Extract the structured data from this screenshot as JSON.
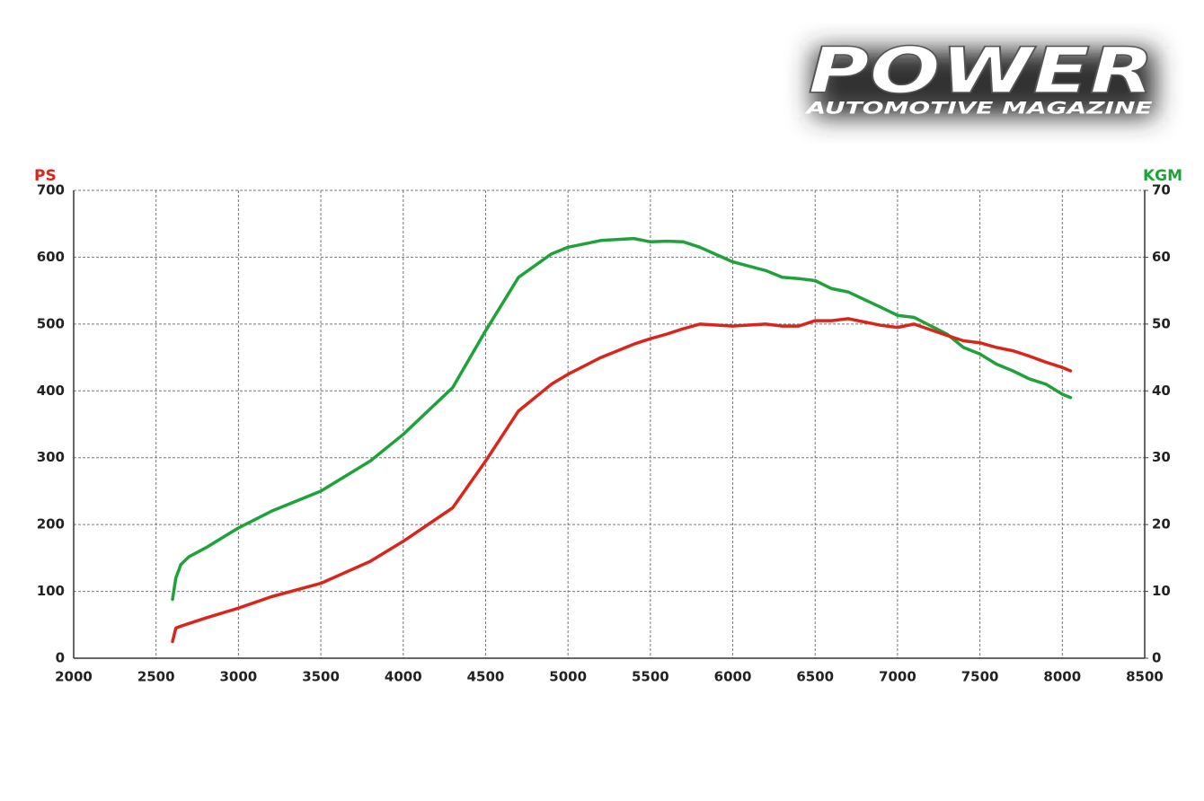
{
  "logo": {
    "title": "POWER",
    "subtitle": "AUTOMOTIVE MAGAZINE"
  },
  "chart_data": {
    "type": "line",
    "ylabel": "PS",
    "y2label": "KGM",
    "x": [
      2600,
      2620,
      2650,
      2700,
      2800,
      3000,
      3200,
      3500,
      3800,
      4000,
      4300,
      4500,
      4700,
      4900,
      5000,
      5200,
      5400,
      5500,
      5600,
      5700,
      5800,
      6000,
      6200,
      6300,
      6400,
      6500,
      6600,
      6700,
      6900,
      7000,
      7100,
      7300,
      7400,
      7500,
      7600,
      7700,
      7800,
      7900,
      8000,
      8050
    ],
    "series": [
      {
        "name": "PS",
        "color": "#d9261c",
        "values": [
          25,
          45,
          48,
          52,
          60,
          75,
          92,
          112,
          145,
          175,
          225,
          295,
          370,
          410,
          425,
          450,
          470,
          478,
          485,
          493,
          500,
          497,
          500,
          497,
          497,
          505,
          505,
          508,
          498,
          495,
          500,
          483,
          475,
          472,
          465,
          460,
          452,
          443,
          435,
          430
        ]
      },
      {
        "name": "KGM",
        "color": "#1fa23a",
        "axis": "y2",
        "values": [
          8.8,
          12,
          14,
          15.2,
          16.5,
          19.5,
          22,
          25,
          29.5,
          33.5,
          40.5,
          49,
          57,
          60.5,
          61.5,
          62.5,
          62.8,
          62.3,
          62.4,
          62.3,
          61.5,
          59.3,
          58,
          57,
          56.8,
          56.5,
          55.3,
          54.8,
          52.5,
          51.3,
          51,
          48.5,
          46.5,
          45.5,
          44,
          43,
          41.8,
          41,
          39.5,
          39
        ]
      }
    ],
    "xlim": [
      2000,
      8500
    ],
    "xticks": [
      2000,
      2500,
      3000,
      3500,
      4000,
      4500,
      5000,
      5500,
      6000,
      6500,
      7000,
      7500,
      8000,
      8500
    ],
    "ylim": [
      0,
      700
    ],
    "yticks": [
      0,
      100,
      200,
      300,
      400,
      500,
      600,
      700
    ],
    "y2lim": [
      0,
      70
    ],
    "y2ticks": [
      0,
      10,
      20,
      30,
      40,
      50,
      60,
      70
    ],
    "grid": true
  }
}
